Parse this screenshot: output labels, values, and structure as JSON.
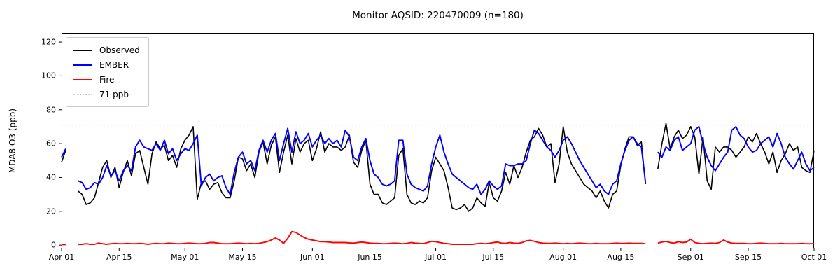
{
  "figure": {
    "title": "Monitor AQSID: 220470009 (n=180)"
  },
  "chart_data": {
    "type": "line",
    "title": "Monitor AQSID: 220470009 (n=180)",
    "xlabel": "",
    "ylabel": "MDA8 O3 (ppb)",
    "x_axis": {
      "kind": "date",
      "start": "Apr 01",
      "end": "Oct 01",
      "unit": "daily points, x given as day offset from Apr 01",
      "tick_days": [
        0,
        14,
        30,
        44,
        61,
        75,
        91,
        105,
        122,
        136,
        153,
        167,
        183
      ],
      "tick_labels": [
        "Apr 01",
        "Apr 15",
        "May 01",
        "May 15",
        "Jun 01",
        "Jun 15",
        "Jul 01",
        "Jul 15",
        "Aug 01",
        "Aug 15",
        "Sep 01",
        "Sep 15",
        "Oct 01"
      ]
    },
    "y_axis": {
      "ticks": [
        0,
        20,
        40,
        60,
        80,
        100,
        120
      ],
      "tick_labels": [
        "0",
        "20",
        "40",
        "60",
        "80",
        "100",
        "120"
      ]
    },
    "xlim_days": [
      0,
      183
    ],
    "ylim": [
      -2,
      125.4
    ],
    "grid": false,
    "threshold_line": {
      "value": 71,
      "label": "71 ppb",
      "color": "#cccccc",
      "style": "dotted"
    },
    "legend": {
      "position": "upper-left",
      "entries": [
        "Observed",
        "EMBER",
        "Fire",
        "71 ppb"
      ]
    },
    "series": [
      {
        "name": "Observed",
        "color": "#000000",
        "note": "null = missing day (gaps Apr 03-04, Aug 22-23)",
        "values": [
          49,
          56,
          null,
          null,
          32,
          30,
          24,
          25,
          28,
          37,
          46,
          50,
          40,
          46,
          34,
          43,
          50,
          41,
          54,
          56,
          46,
          36,
          54,
          61,
          57,
          59,
          50,
          53,
          46,
          57,
          62,
          65,
          70,
          27,
          37,
          38,
          33,
          36,
          37,
          31,
          28,
          28,
          38,
          52,
          51,
          44,
          48,
          40,
          55,
          61,
          48,
          59,
          64,
          43,
          55,
          65,
          48,
          63,
          55,
          60,
          62,
          50,
          57,
          67,
          55,
          60,
          58,
          58,
          56,
          58,
          65,
          49,
          46,
          56,
          62,
          36,
          30,
          30,
          25,
          24,
          26,
          28,
          53,
          57,
          30,
          25,
          24,
          26,
          25,
          28,
          44,
          52,
          48,
          44,
          34,
          22,
          21,
          22,
          24,
          20,
          22,
          28,
          25,
          23,
          37,
          28,
          26,
          32,
          43,
          36,
          47,
          40,
          46,
          55,
          62,
          64,
          69,
          65,
          58,
          60,
          37,
          48,
          70,
          55,
          48,
          44,
          40,
          36,
          34,
          32,
          28,
          32,
          26,
          22,
          30,
          32,
          47,
          57,
          64,
          64,
          59,
          61,
          36,
          null,
          null,
          45,
          60,
          72,
          57,
          64,
          68,
          63,
          65,
          70,
          64,
          42,
          64,
          38,
          33,
          58,
          55,
          58,
          58,
          56,
          52,
          55,
          58,
          64,
          61,
          66,
          60,
          55,
          48,
          55,
          43,
          50,
          54,
          60,
          56,
          58,
          46,
          44,
          43,
          56
        ]
      },
      {
        "name": "EMBER",
        "color": "#0000ff",
        "values": [
          52,
          57,
          null,
          null,
          38,
          37,
          33,
          34,
          37,
          36,
          40,
          47,
          41,
          44,
          38,
          44,
          47,
          44,
          58,
          62,
          58,
          57,
          56,
          60,
          56,
          62,
          54,
          57,
          50,
          54,
          57,
          56,
          60,
          65,
          35,
          40,
          42,
          38,
          40,
          41,
          34,
          30,
          43,
          52,
          55,
          48,
          50,
          44,
          56,
          62,
          55,
          62,
          66,
          50,
          60,
          69,
          55,
          67,
          60,
          62,
          66,
          58,
          62,
          65,
          60,
          63,
          60,
          62,
          58,
          68,
          64,
          52,
          50,
          58,
          63,
          50,
          42,
          40,
          36,
          35,
          36,
          38,
          62,
          62,
          42,
          36,
          34,
          33,
          32,
          35,
          48,
          58,
          65,
          55,
          48,
          42,
          40,
          38,
          36,
          34,
          33,
          36,
          30,
          33,
          38,
          35,
          33,
          35,
          48,
          47,
          47,
          48,
          48,
          50,
          60,
          68,
          66,
          62,
          58,
          56,
          52,
          56,
          62,
          64,
          60,
          55,
          50,
          46,
          42,
          38,
          34,
          36,
          32,
          30,
          36,
          38,
          48,
          56,
          62,
          64,
          60,
          58,
          37,
          null,
          null,
          55,
          52,
          58,
          56,
          62,
          64,
          56,
          58,
          60,
          68,
          70,
          60,
          52,
          47,
          44,
          48,
          52,
          55,
          68,
          70,
          65,
          63,
          58,
          55,
          56,
          60,
          62,
          64,
          58,
          66,
          60,
          52,
          48,
          45,
          50,
          55,
          48,
          44,
          46
        ]
      },
      {
        "name": "Fire",
        "color": "#ff0000",
        "values": [
          0.3,
          0.3,
          null,
          null,
          0.5,
          0.5,
          0.8,
          0.5,
          0.5,
          1.2,
          0.8,
          0.5,
          0.8,
          1.0,
          0.8,
          0.8,
          1.0,
          0.8,
          0.8,
          1.0,
          0.8,
          0.5,
          0.8,
          1.0,
          0.8,
          0.8,
          1.2,
          1.0,
          0.8,
          0.8,
          1.0,
          1.2,
          1.0,
          0.8,
          0.8,
          1.0,
          1.5,
          1.5,
          1.2,
          0.8,
          0.8,
          0.8,
          1.0,
          1.2,
          1.0,
          0.8,
          1.0,
          0.8,
          1.0,
          1.5,
          2.0,
          3.0,
          4.2,
          3.0,
          1.0,
          4.0,
          8.0,
          7.5,
          6.0,
          4.5,
          3.5,
          3.0,
          2.5,
          2.0,
          2.0,
          1.8,
          1.5,
          1.5,
          1.5,
          1.5,
          1.3,
          1.2,
          1.5,
          1.8,
          1.5,
          1.2,
          1.0,
          1.0,
          0.8,
          0.8,
          1.0,
          1.2,
          1.0,
          0.8,
          1.0,
          1.5,
          1.2,
          1.0,
          0.8,
          1.5,
          2.2,
          2.0,
          1.5,
          1.0,
          0.8,
          0.5,
          0.5,
          0.5,
          0.5,
          0.5,
          0.5,
          0.8,
          1.0,
          0.8,
          1.0,
          1.5,
          1.8,
          1.2,
          1.0,
          1.5,
          1.2,
          1.0,
          1.5,
          2.5,
          2.8,
          2.2,
          1.5,
          1.2,
          1.0,
          1.0,
          1.2,
          1.0,
          0.8,
          1.0,
          0.8,
          1.0,
          1.2,
          1.0,
          0.8,
          0.8,
          1.0,
          0.8,
          0.8,
          0.8,
          1.0,
          1.2,
          1.0,
          1.0,
          1.2,
          1.0,
          1.0,
          1.0,
          0.8,
          null,
          null,
          1.2,
          1.8,
          2.2,
          1.5,
          1.2,
          2.0,
          1.5,
          1.8,
          3.5,
          1.5,
          1.0,
          0.8,
          1.0,
          1.2,
          1.0,
          1.5,
          3.0,
          1.8,
          1.2,
          1.0,
          1.0,
          1.0,
          0.8,
          0.8,
          1.0,
          1.2,
          1.0,
          0.8,
          0.8,
          0.8,
          1.0,
          0.8,
          0.8,
          0.8,
          0.8,
          1.0,
          0.8,
          0.8,
          0.8
        ]
      }
    ]
  }
}
